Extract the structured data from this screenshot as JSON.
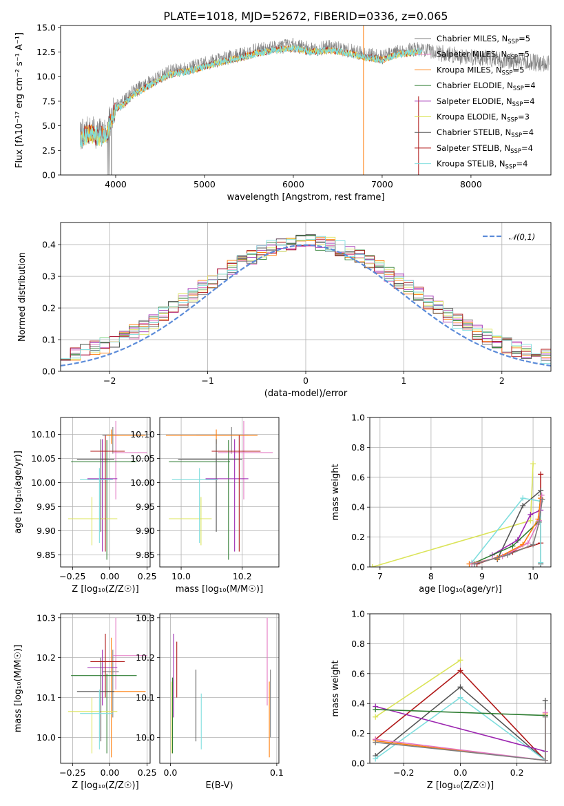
{
  "colors": {
    "chabrier_miles": "#7f7f7f",
    "salpeter_miles": "#e377c2",
    "kroupa_miles": "#ff7f0e",
    "chabrier_elodie": "#2e7d32",
    "salpeter_elodie": "#9c27b0",
    "kroupa_elodie": "#dbe45a",
    "chabrier_stelib": "#555555",
    "salpeter_stelib": "#b01818",
    "kroupa_stelib": "#7fdede",
    "gaussian": "#5b8bd9",
    "spectrum_gray": "#7f7f7f",
    "spectrum_cyan": "#7fdede"
  },
  "chart_data": [
    {
      "type": "line",
      "title": "PLATE=1018, MJD=52672, FIBERID=0336, z=0.065",
      "xlabel": "wavelength [Angstrom, rest frame]",
      "ylabel": "Flux [fλ10⁻¹⁷ erg cm⁻² s⁻¹ A⁻¹]",
      "xlim": [
        3380,
        8900
      ],
      "ylim": [
        0,
        15.2
      ],
      "xticks": [
        4000,
        5000,
        6000,
        7000,
        8000
      ],
      "yticks": [
        0.0,
        2.5,
        5.0,
        7.5,
        10.0,
        12.5,
        15.0
      ],
      "legend_placement": "right",
      "legend": [
        "Chabrier MILES, N_SSP=5",
        "Salpeter MILES, N_SSP=5",
        "Kroupa MILES, N_SSP=5",
        "Chabrier ELODIE, N_SSP=4",
        "Salpeter ELODIE, N_SSP=4",
        "Kroupa ELODIE, N_SSP=3",
        "Chabrier STELIB, N_SSP=4",
        "Salpeter STELIB, N_SSP=4",
        "Kroupa STELIB, N_SSP=4"
      ],
      "data_envelope": {
        "x": [
          3600,
          3700,
          3800,
          3900,
          4000,
          4100,
          4200,
          4400,
          4600,
          4800,
          5000,
          5200,
          5400,
          5600,
          5800,
          6000,
          6200,
          6400,
          6600,
          6800,
          7000,
          7200,
          7400,
          7600,
          7800,
          8000,
          8200,
          8400,
          8600,
          8800
        ],
        "y": [
          4.0,
          4.5,
          4.2,
          4.5,
          7.0,
          7.5,
          8.5,
          9.5,
          10.5,
          10.8,
          11.3,
          11.8,
          12.2,
          12.7,
          13.0,
          13.2,
          12.8,
          13.0,
          12.7,
          12.3,
          12.0,
          12.6,
          12.8,
          12.5,
          12.2,
          12.0,
          11.9,
          11.6,
          11.5,
          11.4
        ]
      },
      "models_end_x": 7450,
      "grid": false
    },
    {
      "type": "line",
      "xlabel": "(data-model)/error",
      "ylabel": "Normed distribution",
      "xlim": [
        -2.5,
        2.5
      ],
      "ylim": [
        0,
        0.47
      ],
      "xticks": [
        -2,
        -1,
        0,
        1,
        2
      ],
      "yticks": [
        0.0,
        0.1,
        0.2,
        0.3,
        0.4
      ],
      "legend": [
        "𝒩(0,1)"
      ],
      "legend_placement": "top-right",
      "grid": true,
      "bins": {
        "start": -2.5,
        "width": 0.1,
        "count": 50
      }
    },
    {
      "type": "scatter",
      "xlabel": "Z [log₁₀(Z/Z☉)]",
      "ylabel": "age  [log₁₀(age/yr)]",
      "xlim": [
        -0.33,
        0.27
      ],
      "ylim": [
        9.825,
        10.135
      ],
      "xticks": [
        -0.25,
        0.0,
        0.25
      ],
      "yticks": [
        9.85,
        9.9,
        9.95,
        10.0,
        10.05,
        10.1
      ],
      "grid": true
    },
    {
      "type": "scatter",
      "xlabel": "mass [log₁₀(M/M☉)]",
      "xlim": [
        9.93,
        10.32
      ],
      "ylim": [
        9.825,
        10.135
      ],
      "xticks": [
        10.0,
        10.2
      ],
      "yticks": [
        9.85,
        9.9,
        9.95,
        10.0,
        10.05,
        10.1
      ],
      "grid": true
    },
    {
      "type": "line",
      "xlabel": "age  [log₁₀(age/yr)]",
      "ylabel": "mass weight",
      "xlim": [
        6.8,
        10.35
      ],
      "ylim": [
        0,
        1.0
      ],
      "xticks": [
        7,
        8,
        9,
        10
      ],
      "yticks": [
        0.0,
        0.2,
        0.4,
        0.6,
        0.8,
        1.0
      ],
      "grid": true
    },
    {
      "type": "scatter",
      "xlabel": "Z [log₁₀(Z/Z☉)]",
      "ylabel": "mass [log₁₀(M/M☉)]",
      "xlim": [
        -0.33,
        0.27
      ],
      "ylim": [
        9.935,
        10.31
      ],
      "xticks": [
        -0.25,
        0.0,
        0.25
      ],
      "yticks": [
        10.0,
        10.1,
        10.2,
        10.3
      ],
      "grid": true
    },
    {
      "type": "scatter",
      "xlabel": "E(B-V)",
      "xlim": [
        -0.01,
        0.102
      ],
      "ylim": [
        9.935,
        10.31
      ],
      "xticks": [
        0.0,
        0.1
      ],
      "yticks": [
        10.0,
        10.1,
        10.2,
        10.3
      ],
      "grid": true
    },
    {
      "type": "line",
      "xlabel": "Z [log₁₀(Z/Z☉)]",
      "ylabel": "mass weight",
      "xlim": [
        -0.32,
        0.32
      ],
      "ylim": [
        0,
        1.0
      ],
      "xticks": [
        -0.2,
        0.0,
        0.2
      ],
      "yticks": [
        0.0,
        0.2,
        0.4,
        0.6,
        0.8,
        1.0
      ],
      "grid": true
    }
  ],
  "fits": [
    {
      "key": "chabrier_miles",
      "Z": 0.02,
      "Zlo": -0.05,
      "Zhi": 0.06,
      "age": 10.098,
      "age_lo": 10.06,
      "age_hi": 10.115,
      "mass": 10.165,
      "mass_lo": 10.13,
      "mass_hi": 10.18,
      "mass_err_lo": 10.05,
      "mass_err_hi": 10.22,
      "ebv": 0.094,
      "ebv_mass_lo": 10.0,
      "ebv_mass_hi": 10.17
    },
    {
      "key": "salpeter_miles",
      "Z": 0.04,
      "Zlo": 0.02,
      "Zhi": 0.25,
      "age": 10.062,
      "age_lo": 9.965,
      "age_hi": 10.128,
      "mass": 10.205,
      "mass_lo": 10.18,
      "mass_hi": 10.23,
      "mass_err_lo": 10.12,
      "mass_err_hi": 10.3,
      "ebv": 0.091,
      "ebv_mass_lo": 10.08,
      "ebv_mass_hi": 10.3
    },
    {
      "key": "kroupa_miles",
      "Z": 0.01,
      "Zlo": -0.02,
      "Zhi": 0.24,
      "age": 10.098,
      "age_lo": 10.08,
      "age_hi": 10.11,
      "mass": 10.115,
      "mass_lo": 10.09,
      "mass_hi": 10.13,
      "mass_err_lo": 9.95,
      "mass_err_hi": 10.25,
      "ebv": 0.093,
      "ebv_mass_lo": 9.95,
      "ebv_mass_hi": 10.14
    },
    {
      "key": "chabrier_elodie",
      "Z": -0.02,
      "Zlo": -0.26,
      "Zhi": 0.18,
      "age": 10.043,
      "age_lo": 9.84,
      "age_hi": 10.088,
      "mass": 10.155,
      "mass_lo": 10.1,
      "mass_hi": 10.17,
      "mass_err_lo": 9.96,
      "mass_err_hi": 10.16,
      "ebv": 0.002,
      "ebv_mass_lo": 9.96,
      "ebv_mass_hi": 10.15
    },
    {
      "key": "salpeter_elodie",
      "Z": -0.05,
      "Zlo": -0.15,
      "Zhi": 0.05,
      "age": 10.008,
      "age_lo": 9.857,
      "age_hi": 10.09,
      "mass": 10.175,
      "mass_lo": 10.14,
      "mass_hi": 10.2,
      "mass_err_lo": 10.08,
      "mass_err_hi": 10.22,
      "ebv": 0.003,
      "ebv_mass_lo": 10.05,
      "ebv_mass_hi": 10.26
    },
    {
      "key": "kroupa_elodie",
      "Z": -0.12,
      "Zlo": -0.28,
      "Zhi": 0.05,
      "age": 9.925,
      "age_lo": 9.87,
      "age_hi": 9.97,
      "mass": 10.065,
      "mass_lo": 10.03,
      "mass_hi": 10.08,
      "mass_err_lo": 9.96,
      "mass_err_hi": 10.1,
      "ebv": 0.001,
      "ebv_mass_lo": 9.96,
      "ebv_mass_hi": 10.14
    },
    {
      "key": "chabrier_stelib",
      "Z": -0.06,
      "Zlo": -0.22,
      "Zhi": 0.03,
      "age": 10.048,
      "age_lo": 9.898,
      "age_hi": 10.09,
      "mass": 10.115,
      "mass_lo": 10.07,
      "mass_hi": 10.13,
      "mass_err_lo": 9.99,
      "mass_err_hi": 10.2,
      "ebv": 0.024,
      "ebv_mass_lo": 9.99,
      "ebv_mass_hi": 10.17
    },
    {
      "key": "salpeter_stelib",
      "Z": -0.03,
      "Zlo": -0.13,
      "Zhi": 0.1,
      "age": 10.065,
      "age_lo": 9.857,
      "age_hi": 10.098,
      "mass": 10.19,
      "mass_lo": 10.15,
      "mass_hi": 10.21,
      "mass_err_lo": 10.1,
      "mass_err_hi": 10.26,
      "ebv": 0.006,
      "ebv_mass_lo": 10.1,
      "ebv_mass_hi": 10.24
    },
    {
      "key": "kroupa_stelib",
      "Z": -0.07,
      "Zlo": -0.2,
      "Zhi": 0.02,
      "age": 10.006,
      "age_lo": 9.875,
      "age_hi": 10.03,
      "mass": 10.06,
      "mass_lo": 10.03,
      "mass_hi": 10.09,
      "mass_err_lo": 9.97,
      "mass_err_hi": 10.12,
      "ebv": 0.029,
      "ebv_mass_lo": 9.97,
      "ebv_mass_hi": 10.11
    }
  ],
  "weights": [
    {
      "key": "kroupa_elodie",
      "age": [
        6.85,
        9.95,
        10.0
      ],
      "w": [
        0.0,
        0.31,
        0.69
      ],
      "Z": [
        -0.3,
        0.0
      ],
      "wz": [
        0.31,
        0.69
      ]
    },
    {
      "key": "salpeter_stelib",
      "age": [
        8.9,
        9.6,
        10.15,
        10.15
      ],
      "w": [
        0.02,
        0.1,
        0.16,
        0.62
      ],
      "Z": [
        -0.3,
        0.0,
        0.3,
        0.3
      ],
      "wz": [
        0.16,
        0.62,
        0.02,
        0.02
      ]
    },
    {
      "key": "chabrier_stelib",
      "age": [
        9.3,
        9.8,
        10.15,
        10.15
      ],
      "w": [
        0.05,
        0.41,
        0.51,
        0.02
      ],
      "Z": [
        -0.3,
        0.0,
        0.3,
        0.3
      ],
      "wz": [
        0.05,
        0.51,
        0.02,
        0.42
      ]
    },
    {
      "key": "kroupa_stelib",
      "age": [
        8.8,
        9.8,
        10.15,
        10.15
      ],
      "w": [
        0.03,
        0.46,
        0.44,
        0.03
      ],
      "Z": [
        -0.3,
        0.0,
        0.3
      ],
      "wz": [
        0.03,
        0.44,
        0.02
      ]
    },
    {
      "key": "salpeter_elodie",
      "age": [
        9.2,
        9.7,
        9.95,
        10.15
      ],
      "w": [
        0.08,
        0.18,
        0.35,
        0.38
      ],
      "Z": [
        -0.3,
        0.3
      ],
      "wz": [
        0.38,
        0.08
      ]
    },
    {
      "key": "chabrier_elodie",
      "age": [
        8.8,
        9.6,
        10.1,
        10.15
      ],
      "w": [
        0.02,
        0.14,
        0.3,
        0.48
      ],
      "Z": [
        -0.3,
        0.3
      ],
      "wz": [
        0.36,
        0.32
      ]
    },
    {
      "key": "kroupa_miles",
      "age": [
        8.75,
        9.3,
        9.8,
        10.1,
        10.15
      ],
      "w": [
        0.02,
        0.06,
        0.15,
        0.32,
        0.46
      ],
      "Z": [
        -0.3,
        0.3,
        0.3
      ],
      "wz": [
        0.15,
        0.02,
        0.33
      ]
    },
    {
      "key": "salpeter_miles",
      "age": [
        8.8,
        9.4,
        9.9,
        10.12,
        10.17
      ],
      "w": [
        0.02,
        0.07,
        0.16,
        0.31,
        0.48
      ],
      "Z": [
        -0.3,
        0.3,
        0.3
      ],
      "wz": [
        0.16,
        0.02,
        0.34
      ]
    },
    {
      "key": "chabrier_miles",
      "age": [
        8.85,
        9.5,
        10.0,
        10.12,
        10.18
      ],
      "w": [
        0.02,
        0.08,
        0.15,
        0.3,
        0.45
      ],
      "Z": [
        -0.3,
        0.3,
        0.3
      ],
      "wz": [
        0.14,
        0.02,
        0.31
      ]
    }
  ]
}
